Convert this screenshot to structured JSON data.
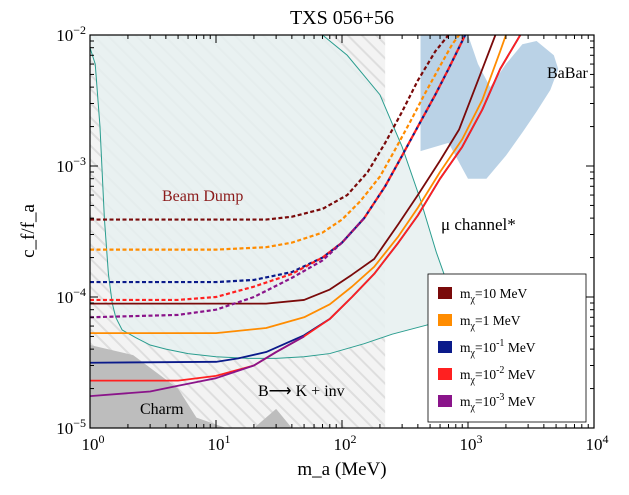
{
  "chart_data": {
    "type": "line",
    "title": "TXS 056+56",
    "xlabel": "m_a (MeV)",
    "ylabel": "c_f/f_a",
    "xscale": "log",
    "yscale": "log",
    "xlim": [
      1,
      10000
    ],
    "ylim": [
      1e-05,
      0.01
    ],
    "x_tick_labels": [
      {
        "base": "10",
        "exp": "0"
      },
      {
        "base": "10",
        "exp": "1"
      },
      {
        "base": "10",
        "exp": "2"
      },
      {
        "base": "10",
        "exp": "3"
      },
      {
        "base": "10",
        "exp": "4"
      }
    ],
    "y_tick_labels": [
      {
        "base": "10",
        "exp": "−5"
      },
      {
        "base": "10",
        "exp": "−4"
      },
      {
        "base": "10",
        "exp": "−3"
      },
      {
        "base": "10",
        "exp": "−2"
      }
    ],
    "annotations": {
      "beam_dump": "Beam Dump",
      "babar": "BaBar",
      "mu_channel": "μ channel*",
      "charm": "Charm",
      "b_to_k": "B⟶ K + inv"
    },
    "colors": {
      "mchi_10": "#7a0a0a",
      "mchi_1": "#ff8c00",
      "mchi_0p1": "#0a1a8a",
      "mchi_0p01": "#ff2020",
      "mchi_0p001": "#8a148a",
      "beam_dump_fill": "#e6f0f0",
      "beam_dump_edge": "#2a9d8f",
      "babar_fill": "#b3cde3",
      "charm_fill": "#bdbdbd"
    },
    "legend": {
      "placement": "bottom-right",
      "entries": [
        {
          "prefix": "m",
          "sub": "χ",
          "value": "=10 MeV",
          "exp": "",
          "unit": "",
          "color_key": "mchi_10"
        },
        {
          "prefix": "m",
          "sub": "χ",
          "value": "=1 MeV",
          "exp": "",
          "unit": "",
          "color_key": "mchi_1"
        },
        {
          "prefix": "m",
          "sub": "χ",
          "value": "=10",
          "exp": "-1",
          "unit": " MeV",
          "color_key": "mchi_0p1"
        },
        {
          "prefix": "m",
          "sub": "χ",
          "value": "=10",
          "exp": "-2",
          "unit": " MeV",
          "color_key": "mchi_0p01"
        },
        {
          "prefix": "m",
          "sub": "χ",
          "value": "=10",
          "exp": "-3",
          "unit": " MeV",
          "color_key": "mchi_0p001"
        }
      ]
    },
    "regions": {
      "beam_dump": [
        [
          1,
          0.01
        ],
        [
          70,
          0.01
        ],
        [
          110,
          0.007
        ],
        [
          200,
          0.0035
        ],
        [
          300,
          0.0014
        ],
        [
          420,
          0.00055
        ],
        [
          560,
          0.00022
        ],
        [
          700,
          0.00012
        ],
        [
          820,
          8e-05
        ],
        [
          500,
          6.2e-05
        ],
        [
          250,
          5.2e-05
        ],
        [
          150,
          4.4e-05
        ],
        [
          80,
          3.7e-05
        ],
        [
          50,
          3.5e-05
        ],
        [
          30,
          3.4e-05
        ],
        [
          18,
          3.4e-05
        ],
        [
          10,
          3.5e-05
        ],
        [
          6,
          3.7e-05
        ],
        [
          4,
          4e-05
        ],
        [
          3,
          4.3e-05
        ],
        [
          2.3,
          4.9e-05
        ],
        [
          1.8,
          5.6e-05
        ],
        [
          1.6,
          7e-05
        ],
        [
          1.5,
          9e-05
        ],
        [
          1.4,
          0.00015
        ],
        [
          1.3,
          0.0004
        ],
        [
          1.2,
          0.002
        ],
        [
          1.1,
          0.006
        ],
        [
          1,
          0.008
        ]
      ],
      "b_to_k": [
        [
          1,
          0.01
        ],
        [
          220,
          0.01
        ],
        [
          220,
          1e-05
        ],
        [
          1,
          1e-05
        ]
      ],
      "charm": [
        [
          1,
          1e-05
        ],
        [
          1,
          4.3e-05
        ],
        [
          2.2,
          3.6e-05
        ],
        [
          5,
          2e-05
        ],
        [
          7,
          1.2e-05
        ],
        [
          12,
          1e-05
        ]
      ],
      "charm_small": [
        [
          20,
          1e-05
        ],
        [
          30,
          1.4e-05
        ],
        [
          40,
          1e-05
        ]
      ],
      "babar": [
        [
          420,
          0.01
        ],
        [
          1000,
          0.01
        ],
        [
          1200,
          0.006
        ],
        [
          1500,
          0.004
        ],
        [
          2000,
          0.006
        ],
        [
          2700,
          0.0085
        ],
        [
          3500,
          0.009
        ],
        [
          4800,
          0.007
        ],
        [
          5200,
          0.0055
        ],
        [
          4500,
          0.0038
        ],
        [
          3500,
          0.0026
        ],
        [
          2700,
          0.0018
        ],
        [
          2000,
          0.0012
        ],
        [
          1400,
          0.0008
        ],
        [
          1000,
          0.0008
        ],
        [
          700,
          0.0015
        ],
        [
          420,
          0.0013
        ]
      ]
    },
    "series": [
      {
        "color_key": "mchi_10",
        "dashed": true,
        "x": [
          1,
          5,
          25,
          40,
          70,
          110,
          160,
          220,
          300,
          400,
          550,
          700
        ],
        "y": [
          0.00039,
          0.00039,
          0.00039,
          0.00041,
          0.00047,
          0.0006,
          0.0009,
          0.0015,
          0.0026,
          0.0045,
          0.0075,
          0.01
        ]
      },
      {
        "color_key": "mchi_10",
        "dashed": false,
        "x": [
          1,
          10,
          25,
          50,
          80,
          120,
          180,
          280,
          400,
          600,
          850,
          1200,
          1650
        ],
        "y": [
          8.9e-05,
          8.9e-05,
          8.9e-05,
          9.5e-05,
          0.000114,
          0.000148,
          0.000195,
          0.00036,
          0.0006,
          0.0011,
          0.0019,
          0.0045,
          0.01
        ]
      },
      {
        "color_key": "mchi_1",
        "dashed": true,
        "x": [
          1,
          10,
          25,
          40,
          70,
          100,
          140,
          200,
          260,
          350,
          450,
          600,
          750,
          850
        ],
        "y": [
          0.00023,
          0.00023,
          0.00024,
          0.00026,
          0.00031,
          0.00039,
          0.00054,
          0.00083,
          0.0013,
          0.0022,
          0.0035,
          0.0058,
          0.0085,
          0.01
        ]
      },
      {
        "color_key": "mchi_1",
        "dashed": false,
        "x": [
          1,
          10,
          25,
          50,
          80,
          120,
          180,
          280,
          400,
          600,
          900,
          1300,
          1800,
          2000
        ],
        "y": [
          5.3e-05,
          5.3e-05,
          5.8e-05,
          7e-05,
          8.8e-05,
          0.00012,
          0.00017,
          0.00029,
          0.00048,
          0.0009,
          0.0016,
          0.0032,
          0.0075,
          0.01
        ]
      },
      {
        "color_key": "mchi_0p1",
        "dashed": true,
        "x": [
          1,
          10,
          20,
          40,
          70,
          100,
          150,
          220,
          300,
          400,
          550,
          700,
          950
        ],
        "y": [
          0.00013,
          0.00013,
          0.000135,
          0.000155,
          0.0002,
          0.00026,
          0.0004,
          0.0007,
          0.0012,
          0.002,
          0.0035,
          0.0055,
          0.01
        ]
      },
      {
        "color_key": "mchi_0p1",
        "dashed": false,
        "x": [
          1,
          10,
          15,
          25,
          50,
          80,
          120,
          180,
          280,
          400,
          600,
          900,
          1300,
          1800,
          2600
        ],
        "y": [
          3.15e-05,
          3.2e-05,
          3.4e-05,
          3.8e-05,
          5.1e-05,
          6.8e-05,
          0.0001,
          0.00015,
          0.00026,
          0.00042,
          0.0008,
          0.0014,
          0.0027,
          0.0055,
          0.01
        ]
      },
      {
        "color_key": "mchi_0p01",
        "dashed": true,
        "x": [
          1,
          5,
          10,
          20,
          40,
          70,
          100,
          150,
          220,
          300,
          400,
          550,
          700,
          950
        ],
        "y": [
          9.5e-05,
          9.5e-05,
          0.0001,
          0.00012,
          0.00015,
          0.0002,
          0.00026,
          0.0004,
          0.0007,
          0.0012,
          0.002,
          0.0035,
          0.0055,
          0.01
        ]
      },
      {
        "color_key": "mchi_0p01",
        "dashed": false,
        "x": [
          1,
          5,
          10,
          20,
          30,
          50,
          80,
          120,
          180,
          280,
          400,
          600,
          900,
          1300,
          1800,
          2600
        ],
        "y": [
          2.3e-05,
          2.3e-05,
          2.5e-05,
          3e-05,
          3.8e-05,
          5e-05,
          6.8e-05,
          0.0001,
          0.00015,
          0.00026,
          0.00042,
          0.0008,
          0.0014,
          0.0027,
          0.0055,
          0.01
        ]
      },
      {
        "color_key": "mchi_0p001",
        "dashed": true,
        "x": [
          1,
          5,
          10,
          20,
          40,
          70,
          100,
          150
        ],
        "y": [
          7e-05,
          7.3e-05,
          8e-05,
          0.0001,
          0.00014,
          0.00019,
          0.00026,
          0.0004
        ]
      },
      {
        "color_key": "mchi_0p001",
        "dashed": false,
        "x": [
          1,
          3,
          5,
          10,
          20,
          30,
          50
        ],
        "y": [
          1.75e-05,
          1.9e-05,
          2.1e-05,
          2.4e-05,
          3e-05,
          3.8e-05,
          5e-05
        ]
      }
    ]
  }
}
